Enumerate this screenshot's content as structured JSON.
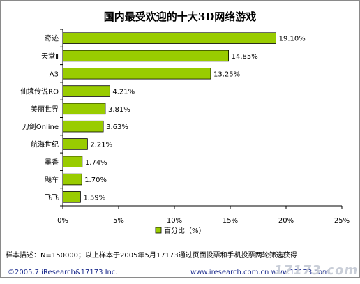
{
  "chart_data": {
    "type": "bar",
    "orientation": "horizontal",
    "title": "国内最受欢迎的十大3D网络游戏",
    "categories": [
      "奇迹",
      "天堂Ⅱ",
      "A3",
      "仙境传说RO",
      "美丽世界",
      "刀剑Online",
      "航海世纪",
      "墨香",
      "飚车",
      "飞飞"
    ],
    "series": [
      {
        "name": "百分比（%）",
        "values": [
          19.1,
          14.85,
          13.25,
          4.21,
          3.81,
          3.63,
          2.21,
          1.74,
          1.7,
          1.59
        ],
        "labels": [
          "19.10%",
          "14.85%",
          "13.25%",
          "4.21%",
          "3.81%",
          "3.63%",
          "2.21%",
          "1.74%",
          "1.70%",
          "1.59%"
        ]
      }
    ],
    "xlim": [
      0,
      25
    ],
    "xticks": [
      0,
      5,
      10,
      15,
      20,
      25
    ],
    "xtick_labels": [
      "0%",
      "5%",
      "10%",
      "15%",
      "20%",
      "25%"
    ],
    "xlabel": "",
    "ylabel": "",
    "grid": false,
    "legend_position": "bottom",
    "colors": {
      "bar_fill": "#99cc00",
      "bar_stroke": "#000000",
      "plot_background": "#ffffff"
    }
  },
  "footer": {
    "note": "样本描述：N=150000；以上样本于2005年5月17173通过页面投票和手机投票两轮筛选获得",
    "copyright": "©2005.7 iResearch&17173 Inc.",
    "url": "www.iresearch.com.cn  www.17173.com",
    "watermark": "17173.com"
  }
}
